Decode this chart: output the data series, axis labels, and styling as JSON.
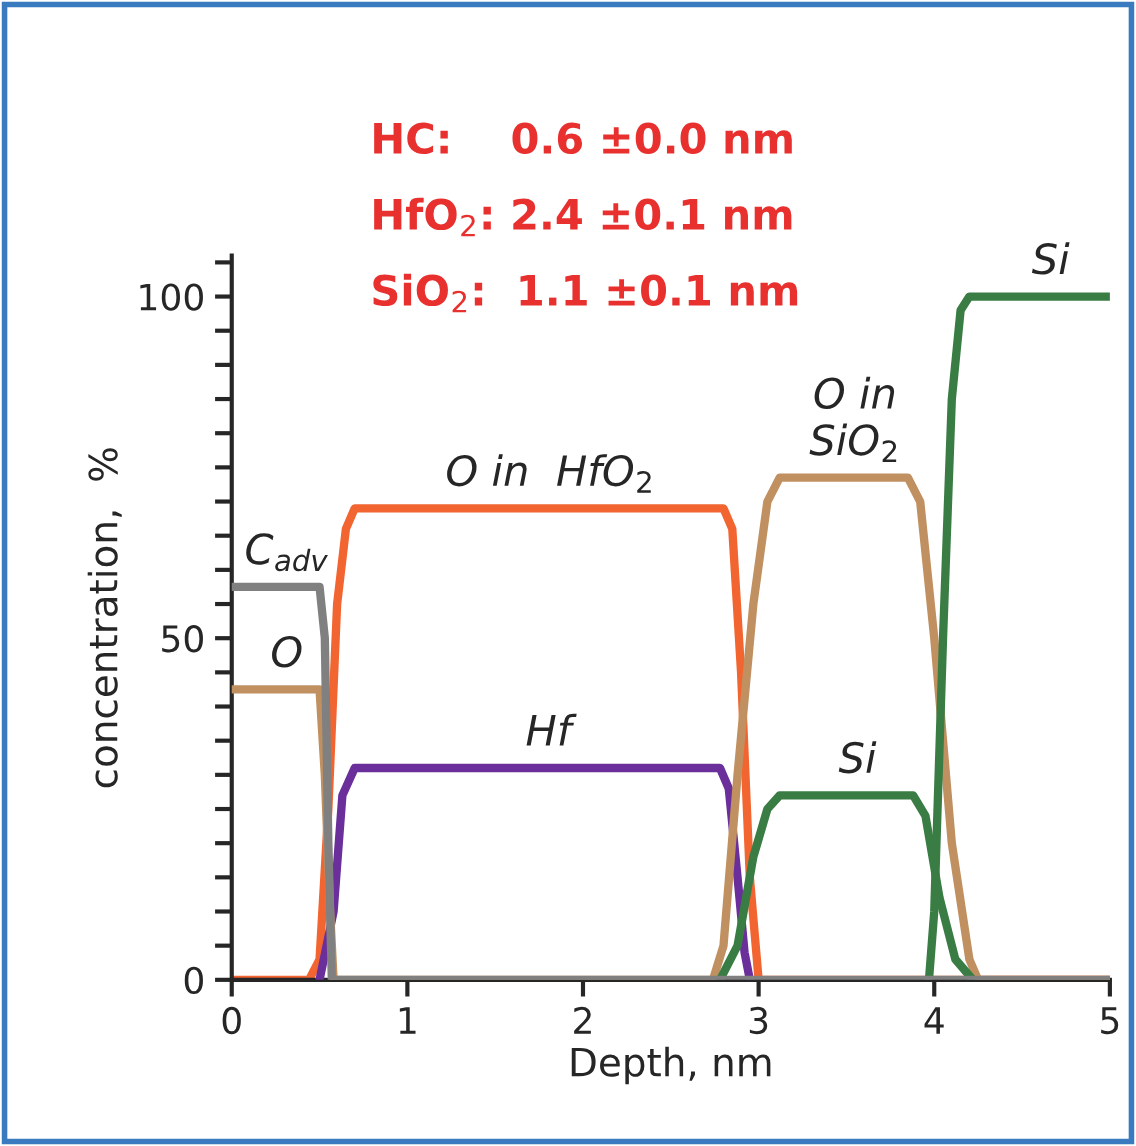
{
  "chart_data": {
    "type": "line",
    "xlabel": "Depth, nm",
    "ylabel": "concentration,  %",
    "xlim": [
      0,
      5
    ],
    "xticks": [
      0,
      1,
      2,
      3,
      4,
      5
    ],
    "ylim": [
      0,
      106
    ],
    "yticks": [
      0,
      {
        "value": 5,
        "label": null
      },
      {
        "value": 10,
        "label": null
      },
      {
        "value": 15,
        "label": null
      },
      {
        "value": 20,
        "label": null
      },
      {
        "value": 25,
        "label": null
      },
      {
        "value": 30,
        "label": null
      },
      {
        "value": 35,
        "label": null
      },
      {
        "value": 40,
        "label": null
      },
      {
        "value": 45,
        "label": null
      },
      50,
      {
        "value": 55,
        "label": null
      },
      {
        "value": 60,
        "label": null
      },
      {
        "value": 65,
        "label": null
      },
      {
        "value": 70,
        "label": null
      },
      {
        "value": 75,
        "label": null
      },
      {
        "value": 80,
        "label": null
      },
      {
        "value": 85,
        "label": null
      },
      {
        "value": 90,
        "label": null
      },
      {
        "value": 95,
        "label": null
      },
      100,
      {
        "value": 105,
        "label": null
      }
    ],
    "grid": false,
    "legend": false,
    "marker": "none",
    "line_style": "solid",
    "series": [
      {
        "name": "O in  HfO$_{2}$",
        "color": "#f26530",
        "x": [
          0,
          0.44,
          0.5,
          0.55,
          0.6,
          0.65,
          0.7,
          2.8,
          2.85,
          2.9,
          2.95,
          3.0,
          5
        ],
        "values": [
          0,
          0,
          3,
          25,
          55,
          66,
          69,
          69,
          66,
          45,
          15,
          0,
          0
        ]
      },
      {
        "name": "Hf",
        "color": "#6a2f9a",
        "x": [
          0.5,
          0.58,
          0.63,
          0.7,
          2.78,
          2.83,
          2.88,
          2.92,
          2.95
        ],
        "values": [
          0,
          10,
          27,
          31,
          31,
          28,
          15,
          4,
          0
        ]
      },
      {
        "name": "O",
        "color": "#c09060",
        "x": [
          0,
          0.5,
          0.53,
          0.56,
          0.58
        ],
        "values": [
          42.5,
          42.5,
          30,
          10,
          0
        ]
      },
      {
        "name": "O in\nSiO$_{2}$",
        "color": "#c09060",
        "x": [
          0.58,
          2.74,
          2.8,
          2.88,
          2.97,
          3.05,
          3.12,
          3.85,
          3.92,
          4.0,
          4.1,
          4.2,
          4.25,
          5
        ],
        "values": [
          0,
          0,
          5,
          30,
          55,
          70,
          73.5,
          73.5,
          70,
          50,
          20,
          3,
          0,
          0
        ]
      },
      {
        "name": "Si",
        "color": "#3a7d44",
        "x": [
          2.78,
          2.88,
          2.97,
          3.05,
          3.12,
          3.88,
          3.95,
          4.03,
          4.12,
          4.22
        ],
        "values": [
          0,
          5,
          18,
          25,
          27,
          27,
          24,
          12,
          3,
          0
        ]
      },
      {
        "name": "Si",
        "color": "#3a7d44",
        "x": [
          3.97,
          4.0,
          4.05,
          4.1,
          4.15,
          4.2,
          5
        ],
        "values": [
          0,
          10,
          50,
          85,
          98,
          100,
          100
        ]
      },
      {
        "name": "C$_{adv}$",
        "color": "#808080",
        "x": [
          0,
          0.5,
          0.53,
          0.55,
          0.57,
          5
        ],
        "values": [
          57.5,
          57.5,
          50,
          20,
          0,
          0
        ]
      }
    ],
    "annotations": [
      "HC:    0.6 ±0.0 nm",
      "HfO$_{2}$: 2.4 ±0.1 nm",
      "SiO$_{2}$:  1.1 ±0.1 nm"
    ]
  }
}
